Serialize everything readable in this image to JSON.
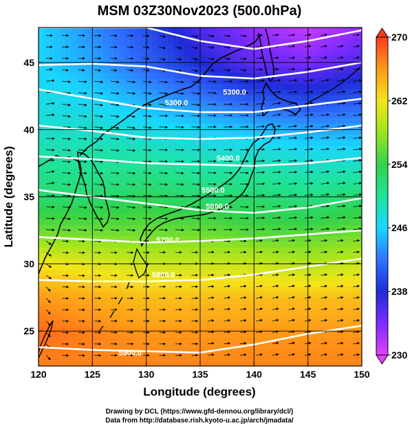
{
  "title": "MSM 03Z30Nov2023 (500.0hPa)",
  "credits": [
    "Drawing by DCL (https://www.gfd-dennou.org/library/dcl/)",
    "Data from http://database.rish.kyoto-u.ac.jp/arch/jmadata/"
  ],
  "chart_data": {
    "type": "heatmap",
    "title": "MSM 03Z30Nov2023 (500.0hPa)",
    "xlabel": "Longitude (degrees)",
    "ylabel": "Latitude  (degrees)",
    "xlim": [
      120,
      150
    ],
    "ylim": [
      22.4,
      47.6
    ],
    "x_ticks": [
      "120",
      "125",
      "130",
      "135",
      "140",
      "145",
      "150"
    ],
    "y_ticks": [
      "25",
      "30",
      "35",
      "40",
      "45"
    ],
    "grid": true,
    "colorbar": {
      "min": 230,
      "max": 270,
      "ticks": [
        "230",
        "238",
        "246",
        "254",
        "262",
        "270"
      ]
    },
    "temperature_field": {
      "latitudes": [
        47.6,
        45,
        42.5,
        40,
        37.5,
        35,
        32.5,
        30,
        27.5,
        25,
        22.4
      ],
      "values_by_longitude": [
        {
          "lon": 120,
          "values": [
            246,
            246,
            247,
            248,
            250,
            252,
            256,
            262,
            266,
            268,
            267
          ]
        },
        {
          "lon": 125,
          "values": [
            243,
            244,
            246,
            248,
            250,
            252,
            256,
            261,
            265,
            267,
            267
          ]
        },
        {
          "lon": 130,
          "values": [
            240,
            241,
            244,
            247,
            250,
            253,
            256,
            260,
            264,
            266,
            267
          ]
        },
        {
          "lon": 135,
          "values": [
            236,
            238,
            242,
            246,
            249,
            252,
            256,
            260,
            264,
            266,
            267
          ]
        },
        {
          "lon": 140,
          "values": [
            233,
            235,
            240,
            245,
            249,
            252,
            255,
            260,
            264,
            266,
            267
          ]
        },
        {
          "lon": 145,
          "values": [
            231,
            234,
            239,
            244,
            248,
            251,
            255,
            259,
            264,
            266,
            267
          ]
        },
        {
          "lon": 150,
          "values": [
            233,
            236,
            240,
            244,
            248,
            252,
            256,
            260,
            264,
            266,
            267
          ]
        }
      ]
    },
    "height_contours": [
      {
        "label": "",
        "lat_at_lon": [
          [
            120,
            47.6
          ],
          [
            125,
            47.6
          ],
          [
            130,
            47.6
          ],
          [
            135,
            46.6
          ],
          [
            140,
            46.0
          ],
          [
            145,
            46.6
          ],
          [
            150,
            47.4
          ]
        ]
      },
      {
        "label": "",
        "lat_at_lon": [
          [
            120,
            44.8
          ],
          [
            125,
            44.9
          ],
          [
            130,
            44.7
          ],
          [
            135,
            44.0
          ],
          [
            140,
            43.8
          ],
          [
            145,
            44.3
          ],
          [
            150,
            45.0
          ]
        ]
      },
      {
        "label": "5300.0",
        "lat_at_lon": [
          [
            120,
            43.0
          ],
          [
            125,
            42.3
          ],
          [
            130,
            41.6
          ],
          [
            135,
            41.3
          ],
          [
            140,
            41.3
          ],
          [
            145,
            41.8
          ],
          [
            150,
            42.3
          ]
        ]
      },
      {
        "label": "",
        "lat_at_lon": [
          [
            120,
            40.3
          ],
          [
            125,
            39.9
          ],
          [
            130,
            39.4
          ],
          [
            135,
            39.3
          ],
          [
            140,
            39.4
          ],
          [
            145,
            39.8
          ],
          [
            150,
            40.3
          ]
        ]
      },
      {
        "label": "5400.0",
        "lat_at_lon": [
          [
            120,
            38.0
          ],
          [
            125,
            37.8
          ],
          [
            130,
            37.5
          ],
          [
            135,
            37.4
          ],
          [
            140,
            37.3
          ],
          [
            145,
            37.5
          ],
          [
            150,
            37.9
          ]
        ]
      },
      {
        "label": "5500.0",
        "lat_at_lon": [
          [
            120,
            35.5
          ],
          [
            125,
            35.0
          ],
          [
            130,
            34.5
          ],
          [
            135,
            34.0
          ],
          [
            140,
            33.8
          ],
          [
            145,
            34.2
          ],
          [
            150,
            34.9
          ]
        ]
      },
      {
        "label": "5600.0",
        "lat_at_lon": [
          [
            120,
            32.0
          ],
          [
            125,
            31.8
          ],
          [
            130,
            31.6
          ],
          [
            135,
            31.7
          ],
          [
            140,
            31.9
          ],
          [
            145,
            32.2
          ],
          [
            150,
            32.5
          ]
        ]
      },
      {
        "label": "5700.0",
        "lat_at_lon": [
          [
            120,
            28.8
          ],
          [
            125,
            28.7
          ],
          [
            130,
            28.7
          ],
          [
            135,
            28.8
          ],
          [
            140,
            29.2
          ],
          [
            145,
            29.8
          ],
          [
            150,
            30.4
          ]
        ]
      },
      {
        "label": "5800.0",
        "lat_at_lon": [
          [
            120,
            23.8
          ],
          [
            125,
            23.6
          ],
          [
            130,
            23.5
          ],
          [
            135,
            23.4
          ],
          [
            140,
            24.0
          ],
          [
            145,
            24.8
          ],
          [
            150,
            25.4
          ]
        ]
      }
    ],
    "contour_labels": [
      {
        "text": "5300.0",
        "lon": 132.8,
        "lat": 41.8
      },
      {
        "text": "5300.0",
        "lon": 138.2,
        "lat": 42.6
      },
      {
        "text": "5400.0",
        "lon": 137.6,
        "lat": 37.7
      },
      {
        "text": "5500.0",
        "lon": 136.2,
        "lat": 35.3
      },
      {
        "text": "5600.0",
        "lon": 136.6,
        "lat": 34.1
      },
      {
        "text": "5700.0",
        "lon": 132.0,
        "lat": 31.6
      },
      {
        "text": "5800.0",
        "lon": 131.6,
        "lat": 29.0
      },
      {
        "text": "5900.0",
        "lon": 128.5,
        "lat": 23.2
      }
    ]
  }
}
